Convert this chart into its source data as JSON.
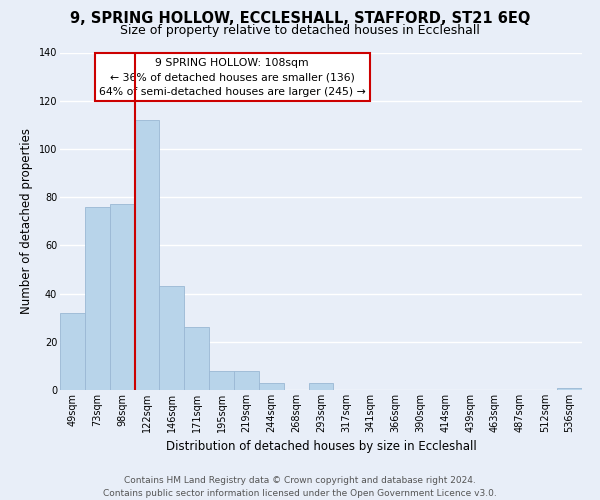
{
  "title": "9, SPRING HOLLOW, ECCLESHALL, STAFFORD, ST21 6EQ",
  "subtitle": "Size of property relative to detached houses in Eccleshall",
  "xlabel": "Distribution of detached houses by size in Eccleshall",
  "ylabel": "Number of detached properties",
  "bar_labels": [
    "49sqm",
    "73sqm",
    "98sqm",
    "122sqm",
    "146sqm",
    "171sqm",
    "195sqm",
    "219sqm",
    "244sqm",
    "268sqm",
    "293sqm",
    "317sqm",
    "341sqm",
    "366sqm",
    "390sqm",
    "414sqm",
    "439sqm",
    "463sqm",
    "487sqm",
    "512sqm",
    "536sqm"
  ],
  "bar_values": [
    32,
    76,
    77,
    112,
    43,
    26,
    8,
    8,
    3,
    0,
    3,
    0,
    0,
    0,
    0,
    0,
    0,
    0,
    0,
    0,
    1
  ],
  "bar_color": "#b8d4ea",
  "bar_edge_color": "#9ab8d4",
  "ylim": [
    0,
    140
  ],
  "yticks": [
    0,
    20,
    40,
    60,
    80,
    100,
    120,
    140
  ],
  "vline_color": "#cc0000",
  "annotation_title": "9 SPRING HOLLOW: 108sqm",
  "annotation_line1": "← 36% of detached houses are smaller (136)",
  "annotation_line2": "64% of semi-detached houses are larger (245) →",
  "annotation_box_color": "#ffffff",
  "annotation_box_edge": "#cc0000",
  "footer_line1": "Contains HM Land Registry data © Crown copyright and database right 2024.",
  "footer_line2": "Contains public sector information licensed under the Open Government Licence v3.0.",
  "background_color": "#e8eef8",
  "grid_color": "#ffffff",
  "title_fontsize": 10.5,
  "subtitle_fontsize": 9,
  "xlabel_fontsize": 8.5,
  "ylabel_fontsize": 8.5,
  "tick_fontsize": 7,
  "footer_fontsize": 6.5,
  "annotation_fontsize": 7.8
}
